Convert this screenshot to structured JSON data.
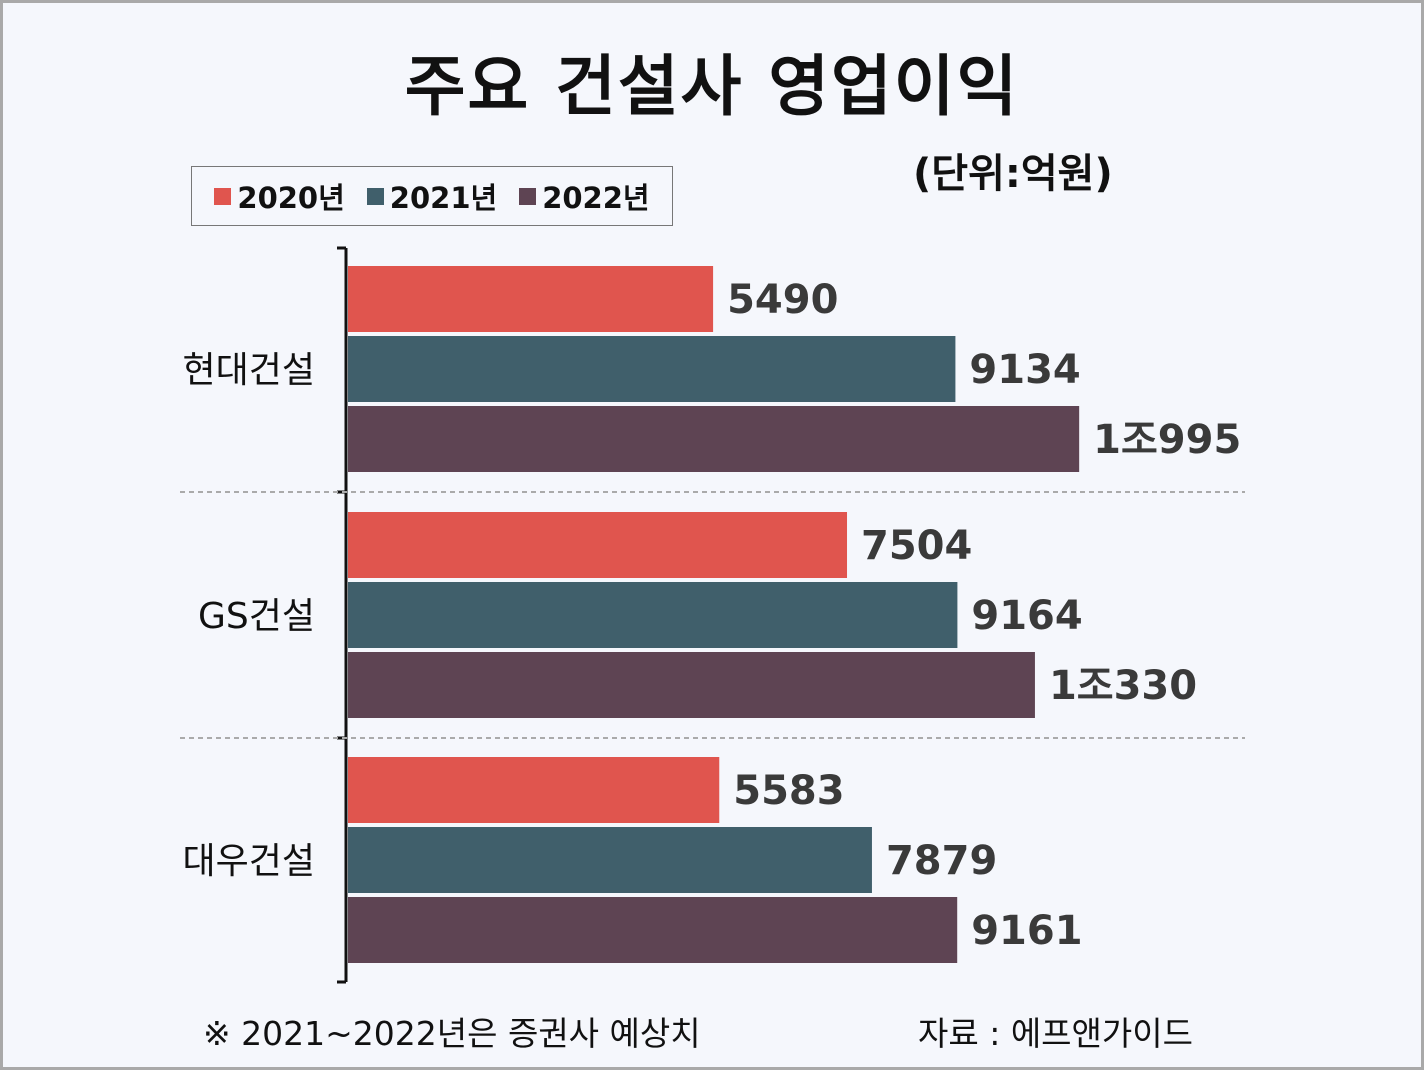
{
  "title": "주요 건설사 영업이익",
  "unit_label": "(단위:억원)",
  "note": "※ 2021~2022년은 증권사 예상치",
  "source": "자료 : 에프앤가이드",
  "chart_data": {
    "type": "bar",
    "orientation": "horizontal",
    "categories": [
      "현대건설",
      "GS건설",
      "대우건설"
    ],
    "series": [
      {
        "name": "2020년",
        "color": "#e0554e",
        "values": [
          5490,
          7504,
          5583
        ],
        "labels": [
          "5490",
          "7504",
          "5583"
        ]
      },
      {
        "name": "2021년",
        "color": "#405f6b",
        "values": [
          9134,
          9164,
          7879
        ],
        "labels": [
          "9134",
          "9164",
          "7879"
        ]
      },
      {
        "name": "2022년",
        "color": "#5e4453",
        "values": [
          10995,
          10330,
          9161
        ],
        "labels": [
          "1조995",
          "1조330",
          "9161"
        ]
      }
    ],
    "legend_position": "top-left",
    "grid": false,
    "group_separators": true
  }
}
